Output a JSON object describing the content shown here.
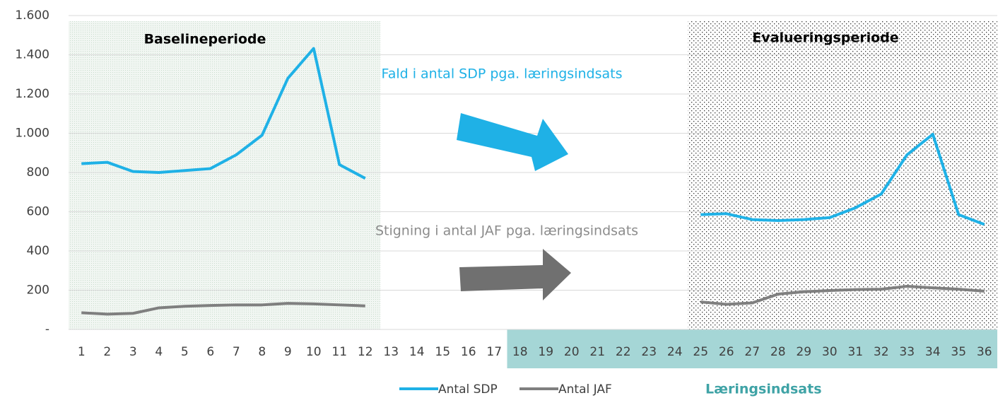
{
  "chart_data": {
    "type": "line",
    "categories": [
      "1",
      "2",
      "3",
      "4",
      "5",
      "6",
      "7",
      "8",
      "9",
      "10",
      "11",
      "12",
      "13",
      "14",
      "15",
      "16",
      "17",
      "18",
      "19",
      "20",
      "21",
      "22",
      "23",
      "24",
      "25",
      "26",
      "27",
      "28",
      "29",
      "30",
      "31",
      "32",
      "33",
      "34",
      "35",
      "36"
    ],
    "series": [
      {
        "name": "Antal SDP",
        "color": "#1fb1e6",
        "values": [
          845,
          852,
          805,
          800,
          810,
          820,
          890,
          990,
          1280,
          1432,
          840,
          770,
          null,
          null,
          null,
          null,
          null,
          null,
          null,
          null,
          null,
          null,
          null,
          null,
          585,
          590,
          560,
          555,
          560,
          570,
          620,
          690,
          890,
          995,
          585,
          535
        ]
      },
      {
        "name": "Antal JAF",
        "color": "#7f7f7f",
        "values": [
          85,
          78,
          82,
          110,
          118,
          122,
          125,
          125,
          133,
          130,
          125,
          120,
          null,
          null,
          null,
          null,
          null,
          null,
          null,
          null,
          null,
          null,
          null,
          null,
          140,
          128,
          135,
          180,
          192,
          198,
          203,
          205,
          220,
          212,
          205,
          195
        ]
      }
    ],
    "ylim": [
      0,
      1600
    ],
    "yticks": [
      {
        "value": 0,
        "label": "-"
      },
      200,
      400,
      600,
      800,
      {
        "value": 1000,
        "label": "1.000"
      },
      {
        "value": 1200,
        "label": "1.200"
      },
      {
        "value": 1400,
        "label": "1.400"
      },
      {
        "value": 1600,
        "label": "1.600"
      }
    ],
    "grid": true,
    "annotations": {
      "baseline": "Baselineperiode",
      "evaluation": "Evalueringsperiode",
      "sdp_note": "Fald i antal SDP pga. læringsindsats",
      "jaf_note": "Stigning i antal JAF pga. læringsindsats",
      "intervention": "Læringsindsats"
    }
  }
}
